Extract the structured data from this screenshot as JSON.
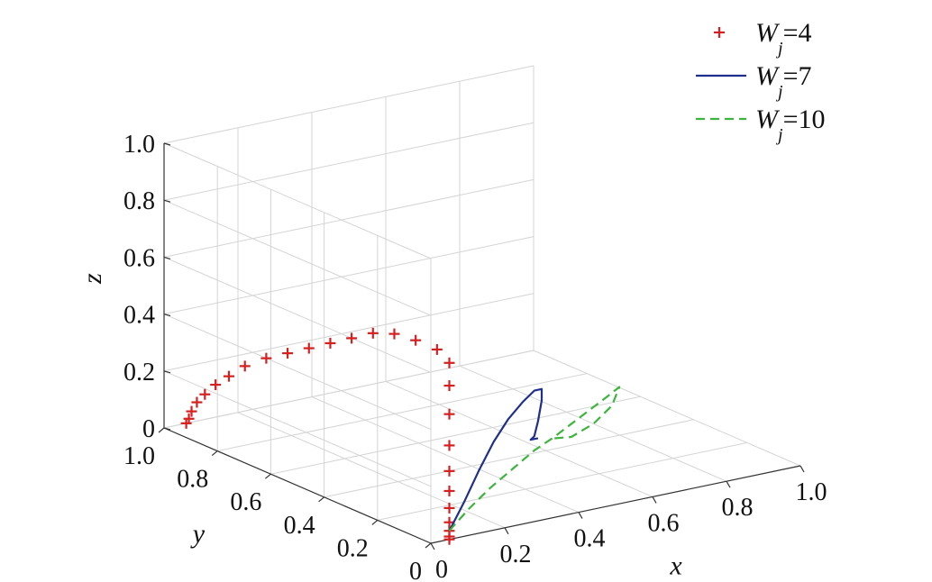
{
  "chart_data": {
    "type": "line3d",
    "axes": {
      "x": {
        "label": "x",
        "range": [
          0,
          1
        ],
        "ticks": [
          "0",
          "0.2",
          "0.4",
          "0.6",
          "0.8",
          "1.0"
        ]
      },
      "y": {
        "label": "y",
        "range": [
          0,
          1
        ],
        "ticks": [
          "0",
          "0.2",
          "0.4",
          "0.6",
          "0.8",
          "1.0"
        ]
      },
      "z": {
        "label": "z",
        "range": [
          0,
          1
        ],
        "ticks": [
          "0",
          "0.2",
          "0.4",
          "0.6",
          "0.8",
          "1.0"
        ]
      }
    },
    "grid": true,
    "legend_position": "top-right",
    "series": [
      {
        "name": "W_j=4",
        "legend": {
          "prefix": "W",
          "sub": "j",
          "suffix": "=4"
        },
        "style": "marker-plus",
        "color": "#d42020",
        "points": [
          [
            0.06,
            0.06,
            0.64
          ],
          [
            0.06,
            0.14,
            0.64
          ],
          [
            0.06,
            0.22,
            0.63
          ],
          [
            0.06,
            0.3,
            0.6
          ],
          [
            0.06,
            0.38,
            0.55
          ],
          [
            0.06,
            0.46,
            0.5
          ],
          [
            0.06,
            0.54,
            0.45
          ],
          [
            0.06,
            0.62,
            0.4
          ],
          [
            0.06,
            0.7,
            0.35
          ],
          [
            0.06,
            0.78,
            0.29
          ],
          [
            0.06,
            0.84,
            0.23
          ],
          [
            0.06,
            0.89,
            0.18
          ],
          [
            0.06,
            0.93,
            0.13
          ],
          [
            0.06,
            0.96,
            0.09
          ],
          [
            0.06,
            0.98,
            0.05
          ],
          [
            0.06,
            0.99,
            0.02
          ],
          [
            0.06,
            1.0,
            0.0
          ],
          [
            0.05,
            0.0,
            0.62
          ],
          [
            0.05,
            0.0,
            0.54
          ],
          [
            0.05,
            0.0,
            0.44
          ],
          [
            0.05,
            0.0,
            0.33
          ],
          [
            0.05,
            0.0,
            0.24
          ],
          [
            0.05,
            0.0,
            0.17
          ],
          [
            0.05,
            0.0,
            0.11
          ],
          [
            0.05,
            0.0,
            0.06
          ],
          [
            0.05,
            0.0,
            0.03
          ],
          [
            0.05,
            0.0,
            0.01
          ],
          [
            0.05,
            0.0,
            0.0
          ]
        ]
      },
      {
        "name": "W_j=7",
        "legend": {
          "prefix": "W",
          "sub": "j",
          "suffix": "=7"
        },
        "style": "solid",
        "color": "#1f2f8c",
        "points": [
          [
            0.05,
            0.0,
            0.03
          ],
          [
            0.09,
            0.0,
            0.12
          ],
          [
            0.13,
            0.0,
            0.22
          ],
          [
            0.17,
            0.0,
            0.31
          ],
          [
            0.21,
            0.0,
            0.38
          ],
          [
            0.25,
            0.0,
            0.43
          ],
          [
            0.28,
            0.0,
            0.46
          ],
          [
            0.3,
            0.0,
            0.46
          ],
          [
            0.3,
            0.0,
            0.42
          ],
          [
            0.29,
            0.0,
            0.35
          ],
          [
            0.28,
            0.0,
            0.3
          ],
          [
            0.27,
            0.0,
            0.29
          ],
          [
            0.29,
            0.0,
            0.29
          ]
        ]
      },
      {
        "name": "W_j=10",
        "legend": {
          "prefix": "W",
          "sub": "j",
          "suffix": "=10"
        },
        "style": "dashed",
        "color": "#3cb53c",
        "points": [
          [
            0.05,
            0.0,
            0.03
          ],
          [
            0.1,
            0.0,
            0.09
          ],
          [
            0.16,
            0.0,
            0.15
          ],
          [
            0.22,
            0.0,
            0.2
          ],
          [
            0.28,
            0.0,
            0.25
          ],
          [
            0.33,
            0.0,
            0.28
          ],
          [
            0.4,
            0.0,
            0.33
          ],
          [
            0.47,
            0.0,
            0.38
          ],
          [
            0.51,
            0.0,
            0.41
          ],
          [
            0.49,
            0.0,
            0.35
          ],
          [
            0.44,
            0.0,
            0.3
          ],
          [
            0.38,
            0.0,
            0.27
          ],
          [
            0.32,
            0.0,
            0.28
          ]
        ]
      }
    ]
  }
}
